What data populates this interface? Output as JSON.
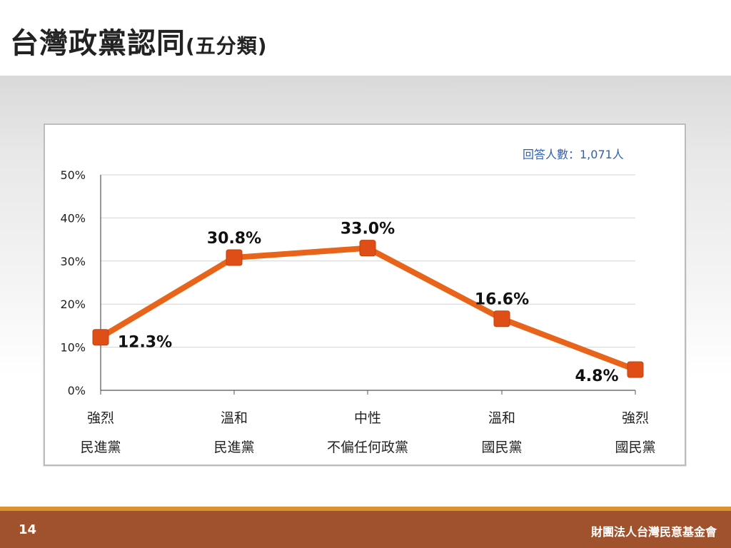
{
  "page": {
    "title": "台灣政黨認同",
    "title_suffix": "(五分類)",
    "respondents": "回答人數：1,071人",
    "page_number": "14",
    "organization": "財團法人台灣民意基金會"
  },
  "colors": {
    "line": "#e8641b",
    "marker": "#e04e17",
    "footer": "#a0522d",
    "footer_accent": "#d9922e",
    "respondents_text": "#2e5fb4"
  },
  "chart_data": {
    "type": "line",
    "categories": [
      [
        "強烈",
        "民進黨"
      ],
      [
        "溫和",
        "民進黨"
      ],
      [
        "中性",
        "不偏任何政黨"
      ],
      [
        "溫和",
        "國民黨"
      ],
      [
        "強烈",
        "國民黨"
      ]
    ],
    "values": [
      12.3,
      30.8,
      33.0,
      16.6,
      4.8
    ],
    "value_labels": [
      "12.3%",
      "30.8%",
      "33.0%",
      "16.6%",
      "4.8%"
    ],
    "y_ticks": [
      "0%",
      "10%",
      "20%",
      "30%",
      "40%",
      "50%"
    ],
    "ylim": [
      0,
      50
    ],
    "grid": true,
    "legend": "none"
  }
}
